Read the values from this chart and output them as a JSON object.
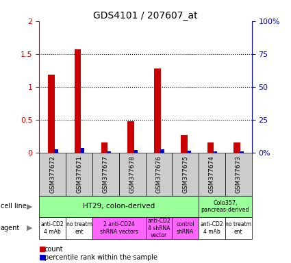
{
  "title": "GDS4101 / 207607_at",
  "samples": [
    "GSM377672",
    "GSM377671",
    "GSM377677",
    "GSM377678",
    "GSM377676",
    "GSM377675",
    "GSM377674",
    "GSM377673"
  ],
  "count_values": [
    1.18,
    1.57,
    0.15,
    0.48,
    1.28,
    0.27,
    0.15,
    0.15
  ],
  "percentile_values": [
    2.5,
    3.5,
    1.0,
    2.0,
    2.5,
    1.5,
    1.0,
    1.0
  ],
  "ylim_left": [
    0,
    2
  ],
  "ylim_right": [
    0,
    100
  ],
  "yticks_left": [
    0,
    0.5,
    1.0,
    1.5,
    2.0
  ],
  "ytick_labels_left": [
    "0",
    "0.5",
    "1",
    "1.5",
    "2"
  ],
  "yticks_right": [
    0,
    25,
    50,
    75,
    100
  ],
  "ytick_labels_right": [
    "0%",
    "25",
    "50",
    "75",
    "100%"
  ],
  "count_color": "#cc0000",
  "percentile_color": "#0000cc",
  "sample_label_bg": "#cccccc",
  "ht29_color": "#99ff99",
  "colo_color": "#99ff99",
  "agent_white": "#ffffff",
  "agent_pink": "#ff66ff",
  "agent_groups": [
    {
      "label": "anti-CD2\n4 mAb",
      "span": [
        0,
        1
      ],
      "color": "#ffffff"
    },
    {
      "label": "no treatm\nent",
      "span": [
        1,
        2
      ],
      "color": "#ffffff"
    },
    {
      "label": "2 anti-CD24\nshRNA vectors",
      "span": [
        2,
        4
      ],
      "color": "#ff66ff"
    },
    {
      "label": "anti-CD2\n4 shRNA\nvector",
      "span": [
        3,
        5
      ],
      "color": "#ff66ff"
    },
    {
      "label": "control\nshRNA",
      "span": [
        5,
        6
      ],
      "color": "#ff66ff"
    },
    {
      "label": "anti-CD2\n4 mAb",
      "span": [
        6,
        7
      ],
      "color": "#ffffff"
    },
    {
      "label": "no treatm\nent",
      "span": [
        7,
        8
      ],
      "color": "#ffffff"
    }
  ]
}
